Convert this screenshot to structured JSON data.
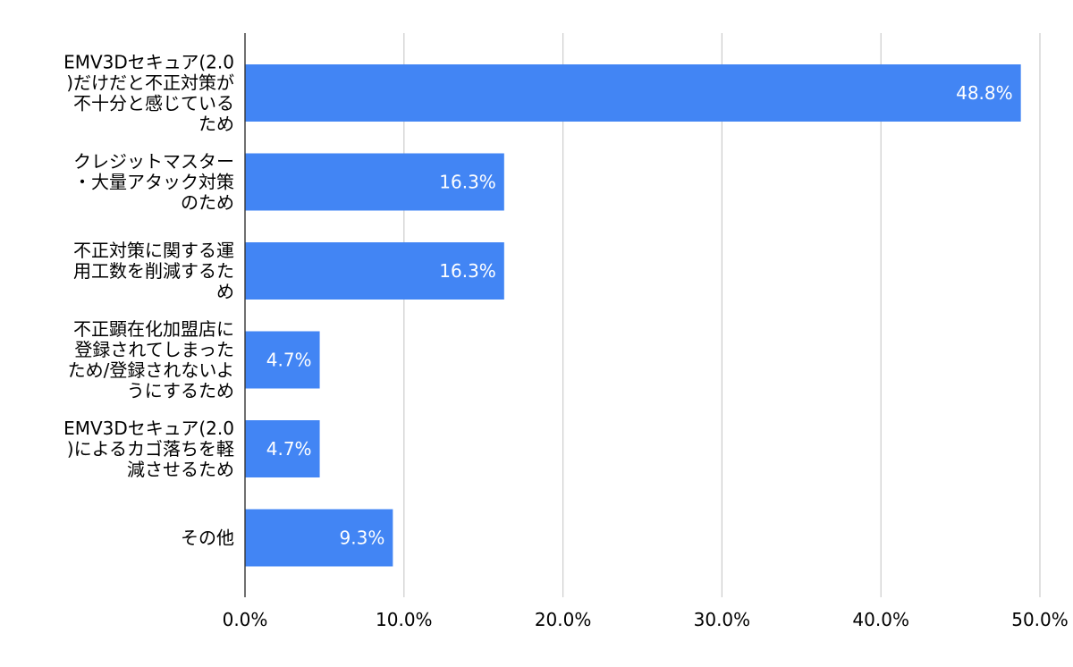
{
  "chart_data": {
    "type": "bar",
    "orientation": "horizontal",
    "categories": [
      [
        "EMV3Dセキュア(2.0",
        ")だけだと不正対策が",
        "不十分と感じている",
        "ため"
      ],
      [
        "クレジットマスター",
        "・大量アタック対策",
        "のため"
      ],
      [
        "不正対策に関する運",
        "用工数を削減するた",
        "め"
      ],
      [
        "不正顕在化加盟店に",
        "登録されてしまった",
        "ため/登録されないよ",
        "うにするため"
      ],
      [
        "EMV3Dセキュア(2.0",
        ")によるカゴ落ちを軽",
        "減させるため"
      ],
      [
        "その他"
      ]
    ],
    "values": [
      48.8,
      16.3,
      16.3,
      4.7,
      4.7,
      9.3
    ],
    "data_labels": [
      "48.8%",
      "16.3%",
      "16.3%",
      "4.7%",
      "4.7%",
      "9.3%"
    ],
    "x_ticks": [
      "0.0%",
      "10.0%",
      "20.0%",
      "30.0%",
      "40.0%",
      "50.0%"
    ],
    "xlim": [
      0,
      50
    ],
    "grid": true,
    "bar_color": "#4285f4",
    "grid_color": "#cccccc",
    "axis_color": "#333333",
    "label_color": "#000000",
    "data_label_color": "#ffffff",
    "title": "",
    "xlabel": "",
    "ylabel": ""
  }
}
